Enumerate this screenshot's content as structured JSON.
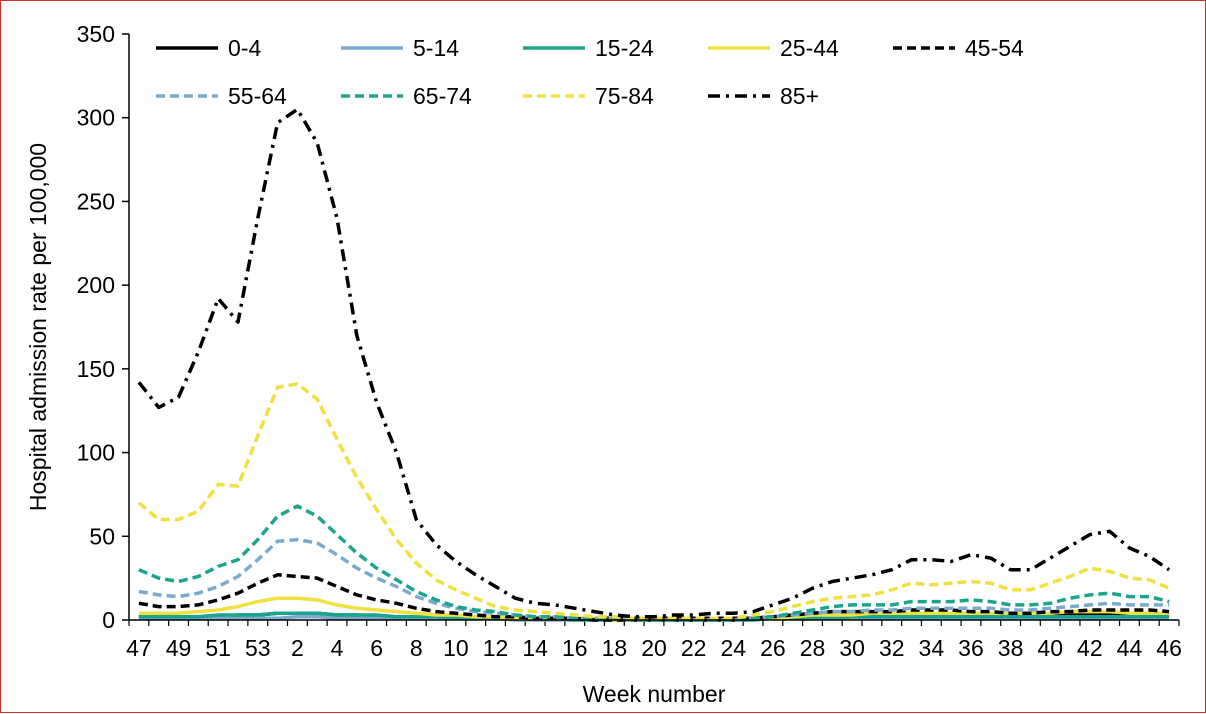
{
  "chart_data": {
    "type": "line",
    "xlabel": "Week number",
    "ylabel": "Hospital admission rate per 100,000",
    "ylim": [
      0,
      350
    ],
    "yticks": [
      0,
      50,
      100,
      150,
      200,
      250,
      300,
      350
    ],
    "grid": false,
    "legend_position": "top",
    "categories": [
      "47",
      "48",
      "49",
      "50",
      "51",
      "52",
      "53",
      "1",
      "2",
      "3",
      "4",
      "5",
      "6",
      "7",
      "8",
      "9",
      "10",
      "11",
      "12",
      "13",
      "14",
      "15",
      "16",
      "17",
      "18",
      "19",
      "20",
      "21",
      "22",
      "23",
      "24",
      "25",
      "26",
      "27",
      "28",
      "29",
      "30",
      "31",
      "32",
      "33",
      "34",
      "35",
      "36",
      "37",
      "38",
      "39",
      "40",
      "41",
      "42",
      "43",
      "44",
      "45",
      "46"
    ],
    "x_tick_labels": [
      "47",
      "49",
      "51",
      "53",
      "2",
      "4",
      "6",
      "8",
      "10",
      "12",
      "14",
      "16",
      "18",
      "20",
      "22",
      "24",
      "26",
      "28",
      "30",
      "32",
      "34",
      "36",
      "38",
      "40",
      "42",
      "44",
      "46"
    ],
    "series": [
      {
        "name": "0-4",
        "color": "#000000",
        "dash": "solid",
        "values": [
          2,
          2,
          2,
          2,
          2,
          3,
          3,
          4,
          4,
          4,
          3,
          3,
          2,
          2,
          2,
          2,
          1,
          1,
          1,
          1,
          1,
          1,
          1,
          1,
          1,
          1,
          1,
          1,
          1,
          1,
          1,
          1,
          2,
          2,
          2,
          2,
          3,
          3,
          3,
          3,
          3,
          3,
          3,
          3,
          3,
          3,
          3,
          3,
          3,
          3,
          3,
          3,
          3
        ]
      },
      {
        "name": "5-14",
        "color": "#7aabcf",
        "dash": "solid",
        "values": [
          1,
          1,
          1,
          1,
          1,
          1,
          1,
          1,
          2,
          2,
          1,
          1,
          1,
          1,
          1,
          1,
          1,
          1,
          1,
          0,
          0,
          0,
          0,
          0,
          0,
          0,
          0,
          0,
          0,
          0,
          0,
          0,
          1,
          1,
          1,
          1,
          1,
          1,
          1,
          1,
          1,
          1,
          1,
          1,
          1,
          1,
          1,
          1,
          1,
          1,
          1,
          1,
          1
        ]
      },
      {
        "name": "15-24",
        "color": "#1aa58c",
        "dash": "solid",
        "values": [
          2,
          2,
          2,
          2,
          3,
          3,
          3,
          4,
          4,
          4,
          3,
          3,
          3,
          2,
          2,
          2,
          1,
          1,
          1,
          1,
          1,
          1,
          0,
          0,
          0,
          0,
          0,
          0,
          0,
          0,
          0,
          0,
          1,
          1,
          1,
          1,
          2,
          2,
          2,
          2,
          2,
          2,
          2,
          2,
          2,
          2,
          2,
          2,
          2,
          2,
          2,
          2,
          2
        ]
      },
      {
        "name": "25-44",
        "color": "#f0e040",
        "dash": "solid",
        "values": [
          4,
          4,
          4,
          5,
          6,
          8,
          11,
          13,
          13,
          12,
          9,
          7,
          6,
          5,
          4,
          3,
          3,
          2,
          2,
          1,
          1,
          1,
          1,
          1,
          0,
          0,
          0,
          0,
          0,
          0,
          0,
          1,
          1,
          2,
          3,
          3,
          3,
          4,
          4,
          4,
          4,
          4,
          4,
          4,
          4,
          4,
          4,
          5,
          5,
          5,
          4,
          4,
          4
        ]
      },
      {
        "name": "45-54",
        "color": "#000000",
        "dash": "dashed",
        "values": [
          10,
          8,
          8,
          9,
          12,
          16,
          22,
          27,
          26,
          25,
          20,
          15,
          12,
          10,
          7,
          5,
          4,
          3,
          2,
          2,
          1,
          1,
          1,
          0,
          0,
          0,
          0,
          0,
          0,
          0,
          0,
          1,
          2,
          3,
          4,
          5,
          5,
          5,
          5,
          6,
          6,
          6,
          5,
          5,
          4,
          4,
          5,
          5,
          6,
          6,
          6,
          6,
          5
        ]
      },
      {
        "name": "55-64",
        "color": "#7aabcf",
        "dash": "dashed",
        "values": [
          17,
          15,
          14,
          16,
          20,
          26,
          36,
          47,
          48,
          46,
          39,
          31,
          25,
          20,
          14,
          10,
          7,
          5,
          4,
          3,
          2,
          2,
          1,
          1,
          1,
          0,
          0,
          0,
          0,
          0,
          0,
          1,
          2,
          3,
          4,
          5,
          5,
          6,
          6,
          7,
          7,
          7,
          7,
          7,
          6,
          6,
          7,
          8,
          9,
          10,
          9,
          9,
          9
        ]
      },
      {
        "name": "65-74",
        "color": "#1aa58c",
        "dash": "dashed",
        "values": [
          30,
          25,
          23,
          26,
          32,
          36,
          48,
          62,
          68,
          62,
          51,
          40,
          31,
          24,
          17,
          12,
          8,
          6,
          5,
          3,
          2,
          2,
          1,
          1,
          1,
          0,
          0,
          0,
          0,
          0,
          0,
          1,
          2,
          4,
          6,
          8,
          9,
          9,
          9,
          11,
          11,
          11,
          12,
          11,
          9,
          9,
          10,
          13,
          15,
          16,
          14,
          14,
          11
        ]
      },
      {
        "name": "75-84",
        "color": "#f0e040",
        "dash": "dashed",
        "values": [
          70,
          60,
          60,
          65,
          81,
          80,
          110,
          139,
          141,
          132,
          108,
          85,
          66,
          48,
          34,
          24,
          18,
          13,
          8,
          6,
          5,
          4,
          3,
          2,
          2,
          1,
          1,
          1,
          1,
          1,
          1,
          3,
          5,
          8,
          11,
          13,
          14,
          15,
          18,
          22,
          21,
          22,
          23,
          22,
          18,
          18,
          22,
          26,
          31,
          29,
          25,
          24,
          19
        ]
      },
      {
        "name": "85+",
        "color": "#000000",
        "dash": "dashdot",
        "values": [
          142,
          127,
          133,
          160,
          192,
          178,
          240,
          297,
          305,
          285,
          240,
          170,
          130,
          100,
          60,
          45,
          35,
          27,
          20,
          13,
          10,
          9,
          7,
          5,
          3,
          2,
          2,
          3,
          3,
          4,
          4,
          5,
          9,
          13,
          19,
          23,
          25,
          27,
          30,
          36,
          36,
          35,
          39,
          37,
          30,
          30,
          37,
          44,
          51,
          53,
          43,
          38,
          30
        ]
      }
    ]
  }
}
